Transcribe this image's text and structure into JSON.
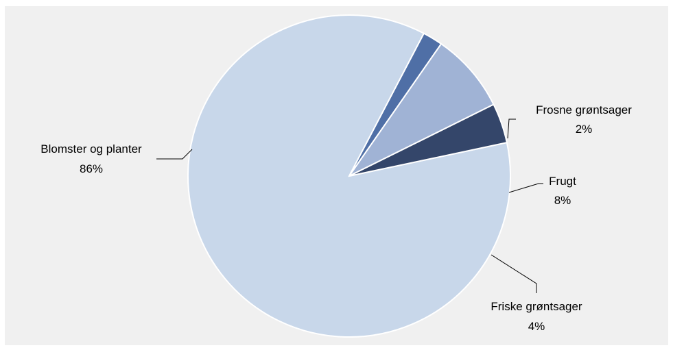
{
  "chart_data": {
    "type": "pie",
    "slices": [
      {
        "name": "Blomster og planter",
        "value": 86,
        "label": "86%",
        "color": "#c8d7ea"
      },
      {
        "name": "Frosne grøntsager",
        "value": 2,
        "label": "2%",
        "color": "#4f6fa6"
      },
      {
        "name": "Frugt",
        "value": 8,
        "label": "8%",
        "color": "#a0b3d5"
      },
      {
        "name": "Friske grøntsager",
        "value": 4,
        "label": "4%",
        "color": "#34466a"
      }
    ],
    "title": "",
    "legend": "none"
  }
}
